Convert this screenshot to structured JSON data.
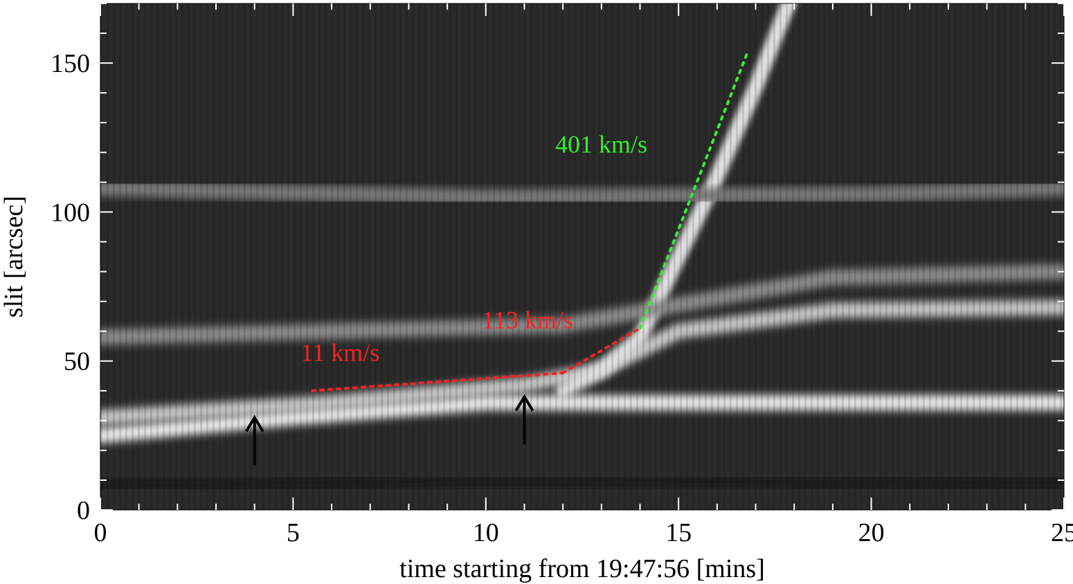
{
  "chart_data": {
    "type": "heatmap",
    "colormap": "grayscale",
    "xlabel": "time starting from 19:47:56 [mins]",
    "ylabel": "slit [arcsec]",
    "xlim": [
      0,
      25
    ],
    "ylim": [
      0,
      170
    ],
    "xticks": [
      0,
      5,
      10,
      15,
      20,
      25
    ],
    "yticks": [
      0,
      50,
      100,
      150
    ],
    "x_minor_step": 1,
    "y_minor_step": 10,
    "features": [
      {
        "name": "bright-band-lower",
        "points": [
          [
            0,
            25
          ],
          [
            5,
            31
          ],
          [
            10,
            36
          ],
          [
            14,
            36
          ],
          [
            20,
            36
          ],
          [
            25,
            36
          ]
        ],
        "brightness": 0.92
      },
      {
        "name": "bright-band-upper",
        "points": [
          [
            0,
            31
          ],
          [
            6,
            36
          ],
          [
            11,
            42
          ],
          [
            13,
            47
          ],
          [
            15,
            60
          ],
          [
            19,
            67
          ],
          [
            25,
            68
          ]
        ],
        "brightness": 0.78
      },
      {
        "name": "eruption-front",
        "points": [
          [
            12,
            40
          ],
          [
            13,
            47
          ],
          [
            14,
            58
          ],
          [
            15,
            85
          ],
          [
            16,
            112
          ],
          [
            17,
            142
          ],
          [
            18,
            175
          ]
        ],
        "brightness": 0.88
      },
      {
        "name": "mid-band",
        "points": [
          [
            0,
            58
          ],
          [
            6,
            60
          ],
          [
            12,
            62
          ],
          [
            19,
            78
          ],
          [
            25,
            80
          ]
        ],
        "brightness": 0.55
      },
      {
        "name": "upper-band",
        "points": [
          [
            0,
            108
          ],
          [
            10,
            105
          ],
          [
            20,
            106
          ],
          [
            25,
            108
          ]
        ],
        "brightness": 0.48
      },
      {
        "name": "dark-band",
        "points": [
          [
            0,
            8
          ],
          [
            10,
            10
          ],
          [
            25,
            9
          ]
        ],
        "brightness": 0.12
      }
    ],
    "fits": [
      {
        "label": "11 km/s",
        "color": "#ff2020",
        "x": [
          5.5,
          12.0
        ],
        "y": [
          40,
          46
        ]
      },
      {
        "label": "113 km/s",
        "color": "#ff2020",
        "x": [
          12.0,
          14.0
        ],
        "y": [
          46,
          61
        ]
      },
      {
        "label": "401 km/s",
        "color": "#33ee33",
        "x": [
          14.0,
          16.8
        ],
        "y": [
          61,
          154
        ]
      }
    ],
    "annotations": [
      {
        "text": "11 km/s",
        "x": 5.2,
        "y": 50,
        "color": "#ff2020"
      },
      {
        "text": "113 km/s",
        "x": 9.9,
        "y": 61,
        "color": "#ff2020"
      },
      {
        "text": "401 km/s",
        "x": 11.8,
        "y": 120,
        "color": "#33ee33"
      }
    ],
    "arrows": [
      {
        "x": 4.0,
        "y_tail": 15,
        "y_head": 31
      },
      {
        "x": 11.0,
        "y_tail": 22,
        "y_head": 38
      }
    ]
  }
}
